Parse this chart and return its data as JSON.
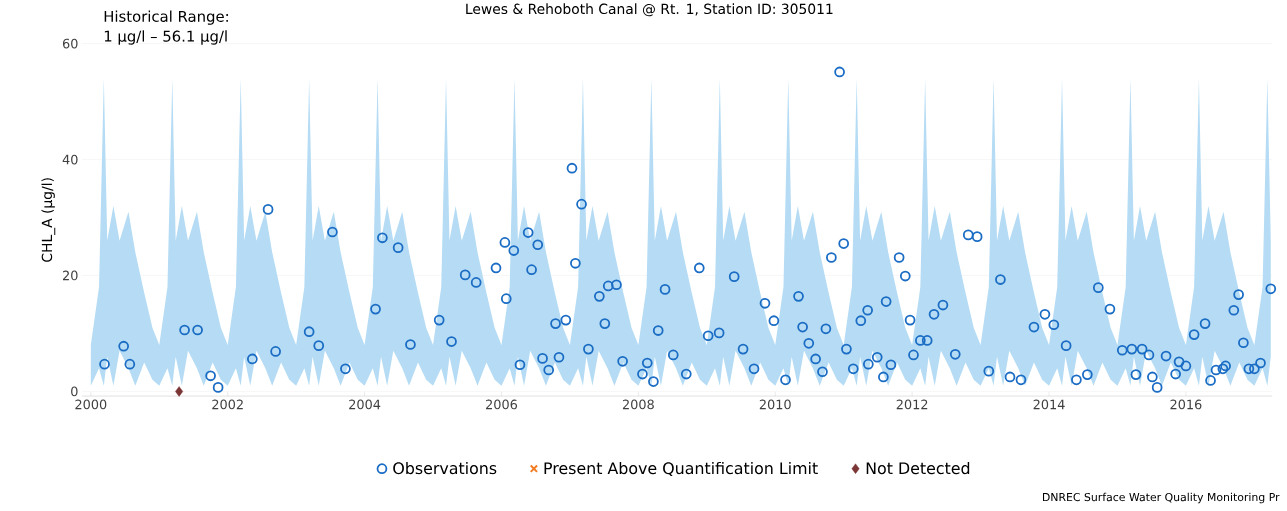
{
  "chart_data": {
    "type": "scatter",
    "title": "Lewes & Rehoboth Canal @ Rt. 1, Station ID: 305011",
    "ylabel": "CHL_A (µg/l)",
    "annotations": [
      "Historical Range:",
      "1 µg/l – 56.1 µg/l",
      "DNREC Surface Water Quality Monitoring Pr"
    ],
    "xlim": [
      1999.87,
      2017.26
    ],
    "ylim": [
      -0.8,
      60
    ],
    "xticks": [
      2000,
      2002,
      2004,
      2006,
      2008,
      2010,
      2012,
      2014,
      2016
    ],
    "yticks": [
      0,
      20,
      40,
      60
    ],
    "grid": "y",
    "legend": "bottom",
    "series": [
      {
        "type": "line",
        "color": "#b5dcf4",
        "values": [
          null,
          null,
          null,
          null,
          null,
          null,
          null,
          null,
          null,
          null,
          null,
          null,
          null,
          null,
          null,
          null,
          null,
          null,
          null,
          null,
          null,
          null,
          null,
          null,
          null,
          null,
          null,
          null,
          null,
          null,
          null,
          null,
          null,
          null,
          null,
          null,
          null,
          null,
          null,
          null,
          null,
          null,
          null,
          null,
          null,
          null,
          null,
          null,
          null,
          null,
          null,
          null,
          null,
          null,
          null,
          null,
          null,
          null,
          null,
          null,
          null,
          null,
          null,
          null,
          null,
          null,
          null,
          null,
          null,
          null,
          null,
          null,
          null,
          null,
          null,
          null,
          null,
          null,
          null,
          null,
          null,
          null,
          null,
          null,
          null,
          null,
          null,
          null,
          null,
          null,
          null,
          null,
          null,
          null,
          null,
          null,
          null,
          null,
          null,
          null,
          null,
          null,
          null,
          null,
          null,
          null,
          null,
          null,
          null,
          null,
          null,
          null,
          null,
          null,
          null,
          null,
          null,
          null,
          null,
          null,
          null,
          null,
          null,
          null,
          null,
          null,
          null,
          null,
          null,
          null,
          null,
          null,
          null,
          null,
          null,
          null,
          null,
          null,
          null,
          null,
          null,
          null,
          null,
          null,
          null,
          null,
          null,
          null,
          null,
          null,
          null,
          null,
          null,
          null,
          null,
          null,
          null,
          null,
          null,
          null,
          null,
          null,
          null,
          null,
          null,
          null,
          null,
          null,
          null,
          null,
          null,
          null,
          null,
          null
        ],
        "x": [
          2000,
          2000.12,
          2000.19,
          2000.24,
          2000.33,
          2000.42,
          2000.55,
          2000.65,
          2000.78,
          2000.9,
          2001,
          2001.12,
          2001.19,
          2001.24,
          2001.33,
          2001.42,
          2001.55,
          2001.65,
          2001.78,
          2001.9,
          2002,
          2002.12,
          2002.19,
          2002.24,
          2002.33,
          2002.42,
          2002.55,
          2002.65,
          2002.78,
          2002.9,
          2003,
          2003.12,
          2003.19,
          2003.24,
          2003.33,
          2003.42,
          2003.55,
          2003.65,
          2003.78,
          2003.9,
          2004,
          2004.12,
          2004.19,
          2004.24,
          2004.33,
          2004.42,
          2004.55,
          2004.65,
          2004.78,
          2004.9,
          2005,
          2005.12,
          2005.19,
          2005.24,
          2005.33,
          2005.42,
          2005.55,
          2005.65,
          2005.78,
          2005.9,
          2006,
          2006.12,
          2006.19,
          2006.24,
          2006.33,
          2006.42,
          2006.55,
          2006.65,
          2006.78,
          2006.9,
          2007,
          2007.12,
          2007.19,
          2007.24,
          2007.33,
          2007.42,
          2007.55,
          2007.65,
          2007.78,
          2007.9,
          2008,
          2008.12,
          2008.19,
          2008.24,
          2008.33,
          2008.42,
          2008.55,
          2008.65,
          2008.78,
          2008.9,
          2009,
          2009.12,
          2009.19,
          2009.24,
          2009.33,
          2009.42,
          2009.55,
          2009.65,
          2009.78,
          2009.9,
          2010,
          2010.12,
          2010.19,
          2010.24,
          2010.33,
          2010.42,
          2010.55,
          2010.65,
          2010.78,
          2010.9,
          2011,
          2011.12,
          2011.19,
          2011.24,
          2011.33,
          2011.42,
          2011.55,
          2011.65,
          2011.78,
          2011.9,
          2012,
          2012.12,
          2012.19,
          2012.24,
          2012.33,
          2012.42,
          2012.55,
          2012.65,
          2012.78,
          2012.9,
          2013,
          2013.12,
          2013.19,
          2013.24,
          2013.33,
          2013.42,
          2013.55,
          2013.65,
          2013.78,
          2013.9,
          2014,
          2014.12,
          2014.19,
          2014.24,
          2014.33,
          2014.42,
          2014.55,
          2014.65,
          2014.78,
          2014.9,
          2015,
          2015.12,
          2015.19,
          2015.24,
          2015.33,
          2015.42,
          2015.55,
          2015.65,
          2015.78,
          2015.9,
          2016,
          2016.12,
          2016.19,
          2016.24,
          2016.33,
          2016.42,
          2016.55,
          2016.65,
          2016.78,
          2016.9,
          2017,
          2017.12,
          2017.19,
          2017.24
        ],
        "upper": [
          8,
          18,
          54,
          26,
          32,
          26,
          31,
          24,
          17,
          11,
          8,
          18,
          54,
          26,
          32,
          26,
          31,
          24,
          17,
          11,
          8,
          18,
          54,
          26,
          32,
          26,
          31,
          24,
          17,
          11,
          8,
          18,
          54,
          26,
          32,
          26,
          31,
          24,
          17,
          11,
          8,
          18,
          54,
          26,
          32,
          26,
          31,
          24,
          17,
          11,
          8,
          18,
          54,
          26,
          32,
          26,
          31,
          24,
          17,
          11,
          8,
          18,
          54,
          26,
          32,
          26,
          31,
          24,
          17,
          11,
          8,
          18,
          54,
          26,
          32,
          26,
          31,
          24,
          17,
          11,
          8,
          18,
          54,
          26,
          32,
          26,
          31,
          24,
          17,
          11,
          8,
          18,
          54,
          26,
          32,
          26,
          31,
          24,
          17,
          11,
          8,
          18,
          54,
          26,
          32,
          26,
          31,
          24,
          17,
          11,
          8,
          18,
          54,
          26,
          32,
          26,
          31,
          24,
          17,
          11,
          8,
          18,
          54,
          26,
          32,
          26,
          31,
          24,
          17,
          11,
          8,
          18,
          54,
          26,
          32,
          26,
          31,
          24,
          17,
          11,
          8,
          18,
          54,
          26,
          32,
          26,
          31,
          24,
          17,
          11,
          8,
          18,
          54,
          26,
          32,
          26,
          31,
          24,
          17,
          11,
          8,
          18,
          54,
          26,
          32,
          26,
          31,
          24,
          17,
          11,
          8,
          18,
          54,
          26
        ],
        "lower": [
          1,
          4,
          1,
          6,
          1,
          7,
          4,
          1,
          5,
          2,
          1,
          4,
          1,
          6,
          1,
          7,
          4,
          1,
          5,
          2,
          1,
          4,
          1,
          6,
          1,
          7,
          4,
          1,
          5,
          2,
          1,
          4,
          1,
          6,
          1,
          7,
          4,
          1,
          5,
          2,
          1,
          4,
          1,
          6,
          1,
          7,
          4,
          1,
          5,
          2,
          1,
          4,
          1,
          6,
          1,
          7,
          4,
          1,
          5,
          2,
          1,
          4,
          1,
          6,
          1,
          7,
          4,
          1,
          5,
          2,
          1,
          4,
          1,
          6,
          1,
          7,
          4,
          1,
          5,
          2,
          1,
          4,
          1,
          6,
          1,
          7,
          4,
          1,
          5,
          2,
          1,
          4,
          1,
          6,
          1,
          7,
          4,
          1,
          5,
          2,
          1,
          4,
          1,
          6,
          1,
          7,
          4,
          1,
          5,
          2,
          1,
          4,
          1,
          6,
          1,
          7,
          4,
          1,
          5,
          2,
          1,
          4,
          1,
          6,
          1,
          7,
          4,
          1,
          5,
          2,
          1,
          4,
          1,
          6,
          1,
          7,
          4,
          1,
          5,
          2,
          1,
          4,
          1,
          6,
          1,
          7,
          4,
          1,
          5,
          2,
          1,
          4,
          1,
          6,
          1,
          7,
          4,
          1,
          5,
          2,
          1,
          4,
          1,
          6,
          1,
          7,
          4,
          1,
          5,
          2,
          1,
          4,
          1,
          6
        ]
      },
      {
        "name": "Observations",
        "color": "#1a6cc4",
        "marker": "circle",
        "x": [
          2000.2,
          2000.48,
          2000.57,
          2001.37,
          2001.56,
          2001.75,
          2001.86,
          2002.36,
          2002.59,
          2002.7,
          2003.19,
          2003.33,
          2003.53,
          2003.72,
          2004.16,
          2004.26,
          2004.49,
          2004.67,
          2005.09,
          2005.27,
          2005.47,
          2005.63,
          2005.92,
          2006.05,
          2006.07,
          2006.18,
          2006.27,
          2006.39,
          2006.44,
          2006.53,
          2006.6,
          2006.69,
          2006.79,
          2006.84,
          2006.94,
          2007.03,
          2007.08,
          2007.17,
          2007.27,
          2007.43,
          2007.51,
          2007.56,
          2007.68,
          2007.77,
          2008.06,
          2008.13,
          2008.22,
          2008.29,
          2008.39,
          2008.51,
          2008.7,
          2008.89,
          2009.02,
          2009.18,
          2009.4,
          2009.53,
          2009.69,
          2009.85,
          2009.98,
          2010.15,
          2010.34,
          2010.4,
          2010.49,
          2010.59,
          2010.69,
          2010.74,
          2010.82,
          2010.94,
          2011.0,
          2011.04,
          2011.14,
          2011.25,
          2011.35,
          2011.36,
          2011.49,
          2011.58,
          2011.62,
          2011.69,
          2011.81,
          2011.9,
          2011.97,
          2012.02,
          2012.12,
          2012.22,
          2012.32,
          2012.45,
          2012.63,
          2012.82,
          2012.95,
          2013.12,
          2013.29,
          2013.43,
          2013.59,
          2013.78,
          2013.94,
          2014.07,
          2014.25,
          2014.4,
          2014.56,
          2014.72,
          2014.89,
          2015.07,
          2015.21,
          2015.27,
          2015.36,
          2015.46,
          2015.51,
          2015.58,
          2015.71,
          2015.85,
          2015.9,
          2016.0,
          2016.12,
          2016.28,
          2016.36,
          2016.44,
          2016.54,
          2016.58,
          2016.7,
          2016.77,
          2016.84,
          2016.92,
          2017.0,
          2017.09,
          2017.24
        ],
        "values": [
          4.7,
          7.8,
          4.7,
          10.6,
          10.6,
          2.7,
          0.7,
          5.6,
          31.4,
          6.9,
          10.3,
          7.9,
          27.5,
          3.9,
          14.2,
          26.5,
          24.8,
          8.1,
          12.3,
          8.6,
          20.1,
          18.8,
          21.3,
          25.7,
          16.0,
          24.3,
          4.6,
          27.4,
          21.0,
          25.3,
          5.7,
          3.7,
          11.7,
          5.9,
          12.3,
          38.5,
          22.1,
          32.3,
          7.3,
          16.4,
          11.7,
          18.2,
          18.4,
          5.2,
          3.0,
          4.9,
          1.7,
          10.5,
          17.6,
          6.3,
          3.0,
          21.3,
          9.6,
          10.1,
          19.8,
          7.3,
          3.9,
          15.2,
          12.2,
          2.0,
          16.4,
          11.1,
          8.3,
          5.6,
          3.4,
          10.8,
          23.1,
          55.1,
          25.5,
          7.3,
          3.9,
          12.2,
          14.0,
          4.7,
          5.9,
          2.5,
          15.5,
          4.6,
          23.1,
          19.9,
          12.3,
          6.3,
          8.8,
          8.8,
          13.3,
          14.9,
          6.4,
          27.0,
          26.7,
          3.5,
          19.3,
          2.5,
          2.0,
          11.1,
          13.3,
          11.5,
          7.9,
          2.0,
          2.9,
          17.9,
          14.2,
          7.1,
          7.3,
          2.9,
          7.3,
          6.3,
          2.5,
          0.7,
          6.1,
          3.0,
          5.1,
          4.4,
          9.8,
          11.7,
          1.9,
          3.7,
          3.9,
          4.4,
          14.0,
          16.7,
          8.4,
          3.9,
          3.9,
          4.9,
          17.7
        ]
      },
      {
        "name": "Present Above Quantification Limit",
        "color": "#f47b20",
        "marker": "cross"
      },
      {
        "name": "Not Detected",
        "color": "#7b3535",
        "marker": "diamond",
        "x": [
          2001.29
        ],
        "values": [
          0
        ]
      }
    ]
  }
}
